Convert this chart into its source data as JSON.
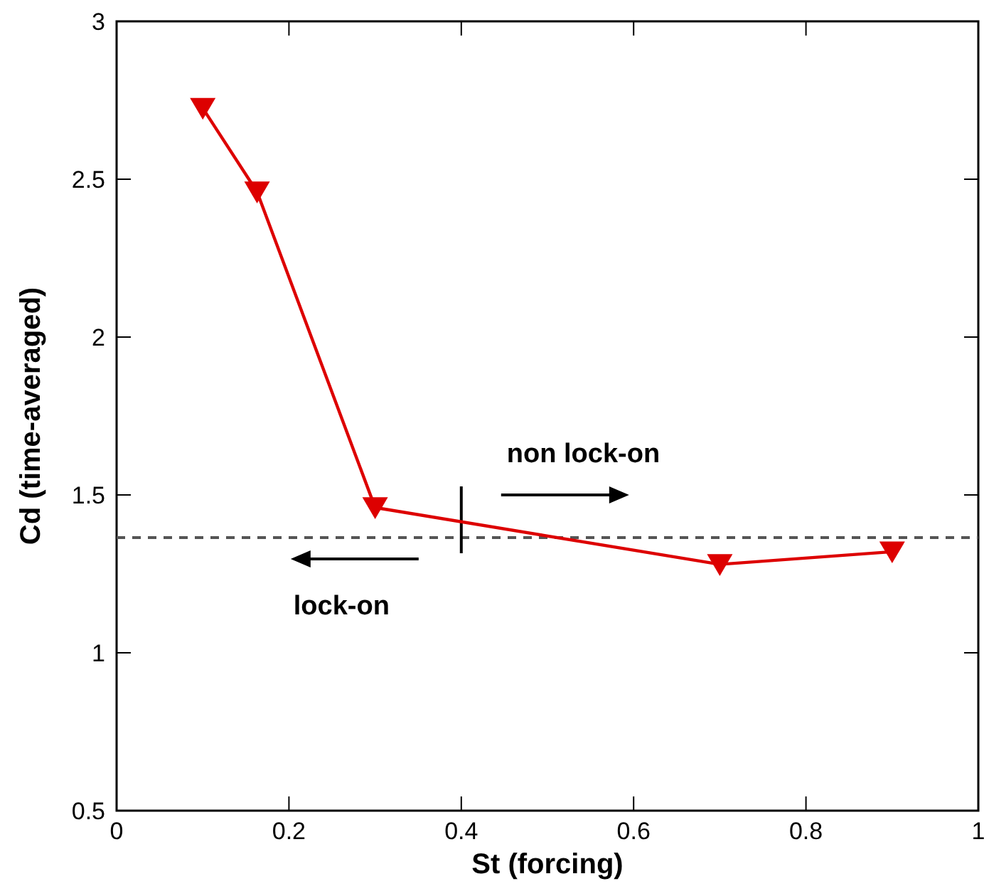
{
  "chart_data": {
    "type": "line",
    "xlabel": "St (forcing)",
    "ylabel": "Cd (time-averaged)",
    "x": [
      0.1,
      0.163,
      0.3,
      0.7,
      0.9
    ],
    "series": [
      {
        "color": "#dd0000",
        "values": [
          2.725,
          2.46,
          1.46,
          1.28,
          1.32
        ]
      }
    ],
    "xlim": [
      0,
      1
    ],
    "xticks": [
      0,
      0.2,
      0.4,
      0.6,
      0.8,
      1
    ],
    "ylim": [
      0.5,
      3
    ],
    "yticks": [
      0.5,
      1,
      1.5,
      2,
      2.5,
      3
    ],
    "marker": "triangle",
    "line_style": "solid",
    "grid": false,
    "ref_lines": [
      {
        "axis": "y",
        "value": 1.365,
        "color": "#555555",
        "line_style": "dashed"
      },
      {
        "axis": "x",
        "value": 0.4,
        "color": "#000000",
        "line_style": "solid"
      }
    ],
    "annotations": [
      "non lock-on",
      "lock-on"
    ]
  }
}
